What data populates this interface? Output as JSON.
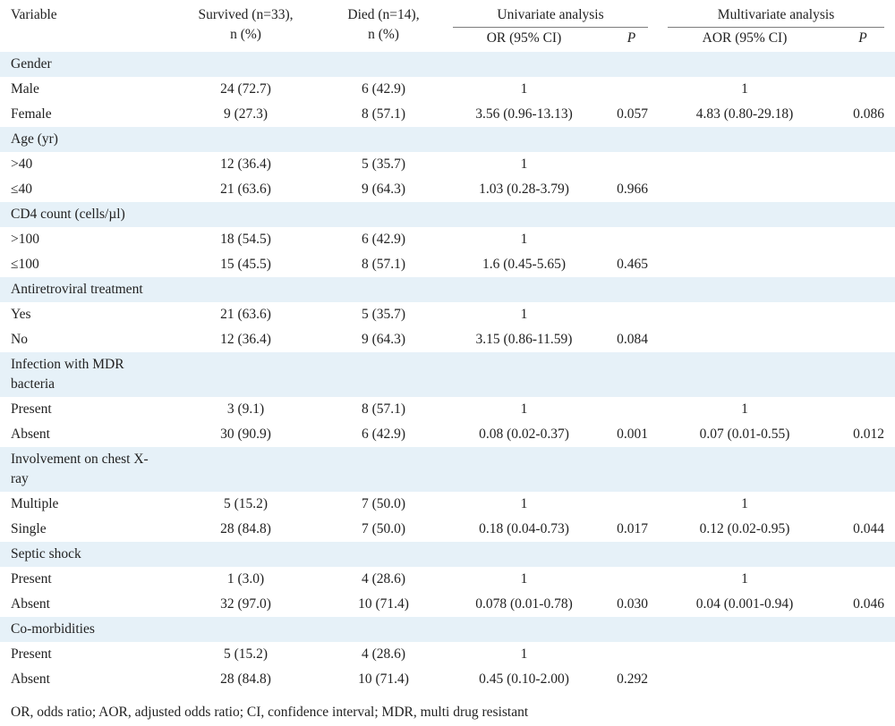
{
  "header": {
    "variable": "Variable",
    "survived": [
      "Survived (n=33),",
      "n (%)"
    ],
    "died": [
      "Died (n=14),",
      "n (%)"
    ],
    "univariate": "Univariate analysis",
    "multivariate": "Multivariate analysis",
    "or": "OR (95% CI)",
    "p1": "P",
    "aor": "AOR (95% CI)",
    "p2": "P"
  },
  "groups": [
    {
      "label": "Gender",
      "rows": [
        {
          "var": "Male",
          "survived": "24 (72.7)",
          "died": "6 (42.9)",
          "or": "1",
          "p": "",
          "aor": "1",
          "ap": ""
        },
        {
          "var": "Female",
          "survived": "9 (27.3)",
          "died": "8 (57.1)",
          "or": "3.56 (0.96-13.13)",
          "p": "0.057",
          "aor": "4.83 (0.80-29.18)",
          "ap": "0.086"
        }
      ]
    },
    {
      "label": "Age (yr)",
      "rows": [
        {
          "var": ">40",
          "survived": "12 (36.4)",
          "died": "5 (35.7)",
          "or": "1",
          "p": "",
          "aor": "",
          "ap": ""
        },
        {
          "var": "≤40",
          "survived": "21 (63.6)",
          "died": "9 (64.3)",
          "or": "1.03 (0.28-3.79)",
          "p": "0.966",
          "aor": "",
          "ap": ""
        }
      ]
    },
    {
      "label": "CD4 count (cells/µl)",
      "rows": [
        {
          "var": ">100",
          "survived": "18 (54.5)",
          "died": "6 (42.9)",
          "or": "1",
          "p": "",
          "aor": "",
          "ap": ""
        },
        {
          "var": "≤100",
          "survived": "15 (45.5)",
          "died": "8 (57.1)",
          "or": "1.6 (0.45-5.65)",
          "p": "0.465",
          "aor": "",
          "ap": ""
        }
      ]
    },
    {
      "label": "Antiretroviral treatment",
      "rows": [
        {
          "var": "Yes",
          "survived": "21 (63.6)",
          "died": "5 (35.7)",
          "or": "1",
          "p": "",
          "aor": "",
          "ap": ""
        },
        {
          "var": "No",
          "survived": "12 (36.4)",
          "died": "9 (64.3)",
          "or": "3.15 (0.86-11.59)",
          "p": "0.084",
          "aor": "",
          "ap": ""
        }
      ]
    },
    {
      "label": "Infection with MDR bacteria",
      "rows": [
        {
          "var": "Present",
          "survived": "3 (9.1)",
          "died": "8 (57.1)",
          "or": "1",
          "p": "",
          "aor": "1",
          "ap": ""
        },
        {
          "var": "Absent",
          "survived": "30 (90.9)",
          "died": "6 (42.9)",
          "or": "0.08 (0.02-0.37)",
          "p": "0.001",
          "aor": "0.07 (0.01-0.55)",
          "ap": "0.012"
        }
      ]
    },
    {
      "label": "Involvement on chest X-ray",
      "rows": [
        {
          "var": "Multiple",
          "survived": "5 (15.2)",
          "died": "7 (50.0)",
          "or": "1",
          "p": "",
          "aor": "1",
          "ap": ""
        },
        {
          "var": "Single",
          "survived": "28 (84.8)",
          "died": "7 (50.0)",
          "or": "0.18 (0.04-0.73)",
          "p": "0.017",
          "aor": "0.12 (0.02-0.95)",
          "ap": "0.044"
        }
      ]
    },
    {
      "label": "Septic shock",
      "rows": [
        {
          "var": "Present",
          "survived": "1 (3.0)",
          "died": "4 (28.6)",
          "or": "1",
          "p": "",
          "aor": "1",
          "ap": ""
        },
        {
          "var": "Absent",
          "survived": "32 (97.0)",
          "died": "10 (71.4)",
          "or": "0.078 (0.01-0.78)",
          "p": "0.030",
          "aor": "0.04 (0.001-0.94)",
          "ap": "0.046"
        }
      ]
    },
    {
      "label": "Co-morbidities",
      "rows": [
        {
          "var": "Present",
          "survived": "5 (15.2)",
          "died": "4 (28.6)",
          "or": "1",
          "p": "",
          "aor": "",
          "ap": ""
        },
        {
          "var": "Absent",
          "survived": "28 (84.8)",
          "died": "10 (71.4)",
          "or": "0.45 (0.10-2.00)",
          "p": "0.292",
          "aor": "",
          "ap": ""
        }
      ]
    }
  ],
  "footnote": "OR, odds ratio; AOR, adjusted odds ratio; CI, confidence interval; MDR, multi drug resistant"
}
